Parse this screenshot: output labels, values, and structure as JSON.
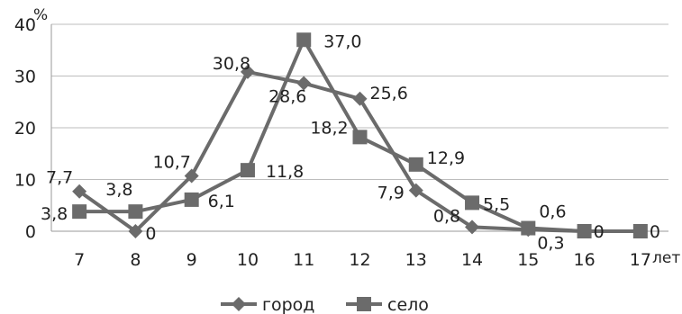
{
  "chart_data": {
    "type": "line",
    "title": "",
    "xlabel": "",
    "ylabel": "",
    "x_unit": "лет",
    "y_unit": "%",
    "categories": [
      "7",
      "8",
      "9",
      "10",
      "11",
      "12",
      "13",
      "14",
      "15",
      "16",
      "17"
    ],
    "y_ticks": [
      "0",
      "10",
      "20",
      "30",
      "40"
    ],
    "ylim": [
      0,
      40
    ],
    "grid": "horizontal",
    "legend_position": "bottom",
    "series": [
      {
        "name": "город",
        "marker": "diamond",
        "color": "#6b6b6b",
        "values": [
          7.7,
          0,
          10.7,
          30.8,
          28.6,
          25.6,
          7.9,
          0.8,
          0.3,
          0,
          0
        ],
        "labels": [
          "7,7",
          "0",
          "10,7",
          "30,8",
          "28,6",
          "25,6",
          "7,9",
          "0,8",
          "0,3",
          "",
          ""
        ]
      },
      {
        "name": "село",
        "marker": "square",
        "color": "#6b6b6b",
        "values": [
          3.8,
          3.8,
          6.1,
          11.8,
          37.0,
          18.2,
          12.9,
          5.5,
          0.6,
          0,
          0
        ],
        "labels": [
          "3,8",
          "3,8",
          "6,1",
          "11,8",
          "37,0",
          "18,2",
          "12,9",
          "5,5",
          "0,6",
          "0",
          "0"
        ]
      }
    ]
  }
}
